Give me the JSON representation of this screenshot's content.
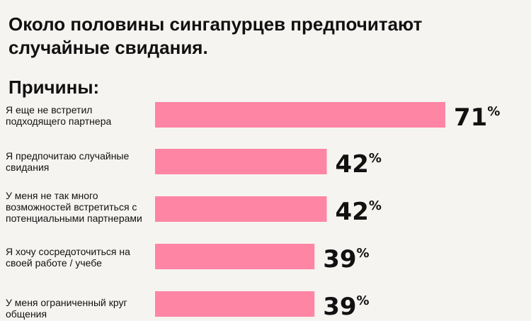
{
  "header": {
    "title": "Около половины сингапурцев предпочитают случайные свидания.",
    "reasons_heading": "Причины:"
  },
  "colors": {
    "bar": "#ff85a5",
    "background": "#f6f4f1",
    "text": "#111111"
  },
  "chart_data": {
    "type": "bar",
    "orientation": "horizontal",
    "title": "Около половины сингапурцев предпочитают случайные свидания.",
    "categories": [
      "Я еще не встретил подходящего партнера",
      "Я предпочитаю случайные свидания",
      "У меня не так много возможностей встретиться с потенциальными партнерами",
      "Я хочу сосредоточиться на своей работе / учебе",
      "У меня ограниченный круг общения"
    ],
    "values": [
      71,
      42,
      42,
      39,
      39
    ],
    "unit": "%",
    "xlim": [
      0,
      71
    ],
    "grid": false,
    "legend": "none"
  }
}
